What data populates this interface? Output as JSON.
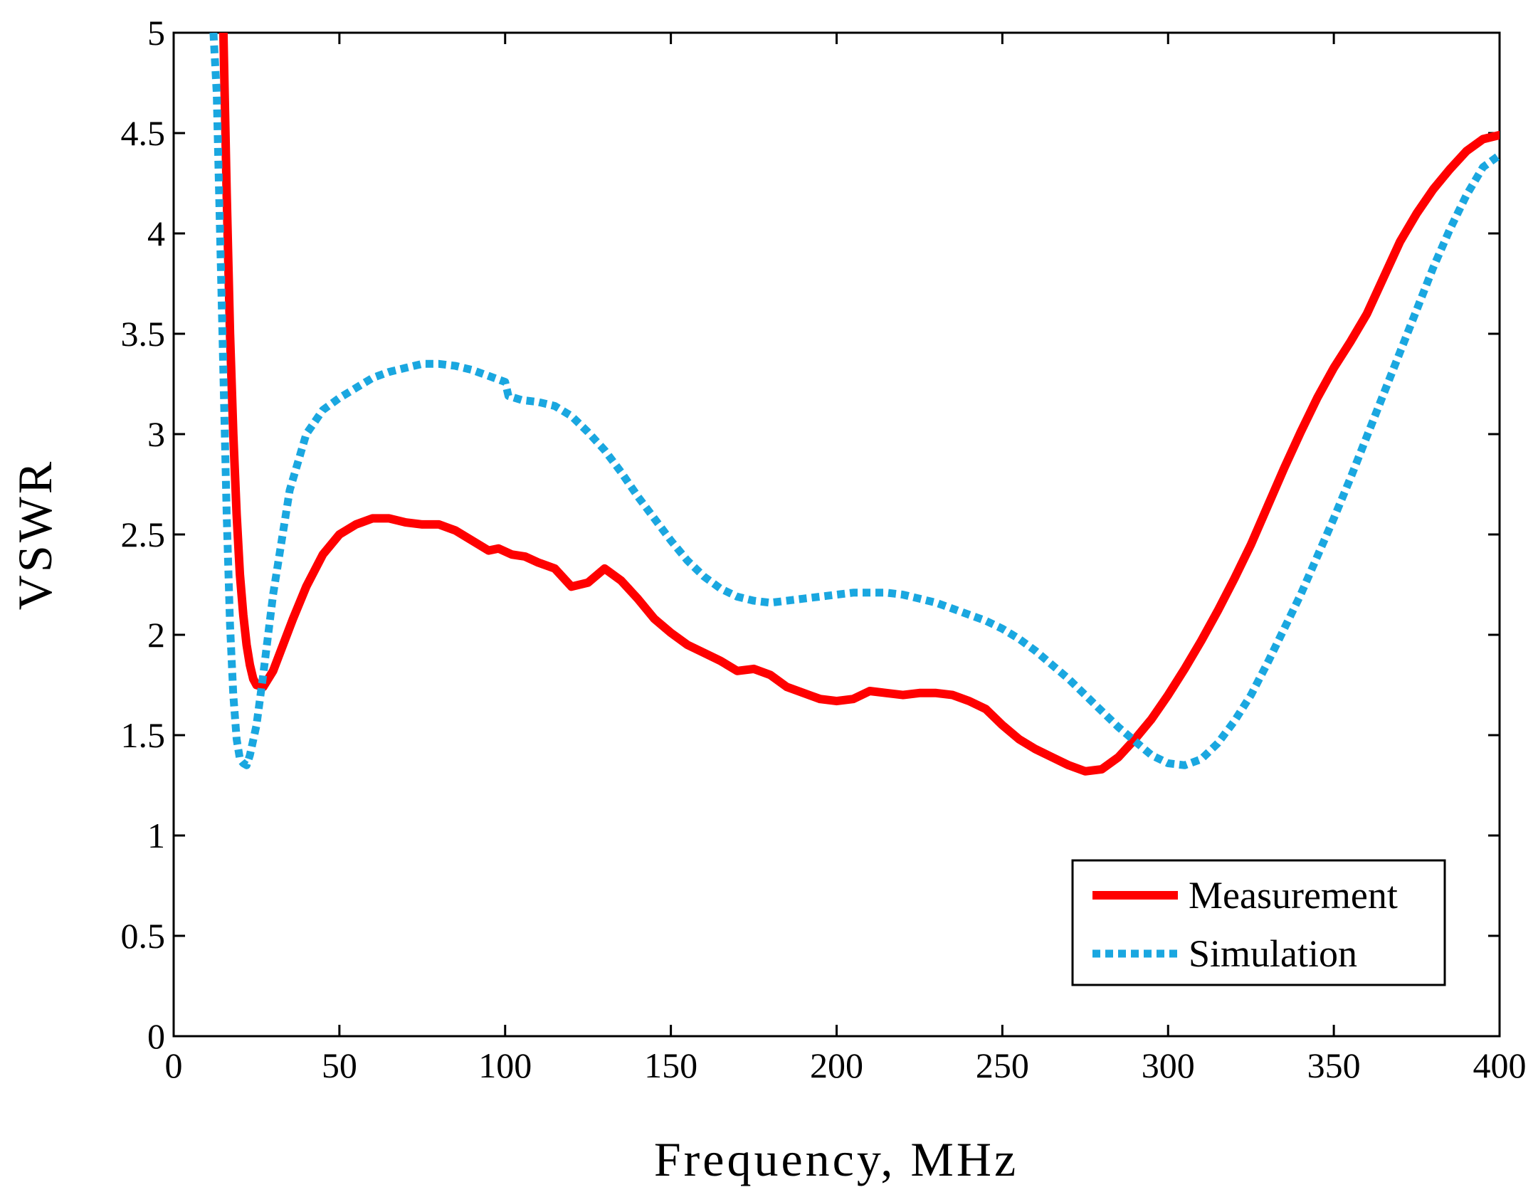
{
  "chart_data": {
    "type": "line",
    "title": "",
    "xlabel": "Frequency, MHz",
    "ylabel": "VSWR",
    "xlim": [
      0,
      400
    ],
    "ylim": [
      0,
      5
    ],
    "xticks": [
      0,
      50,
      100,
      150,
      200,
      250,
      300,
      350,
      400
    ],
    "yticks": [
      0,
      0.5,
      1,
      1.5,
      2,
      2.5,
      3,
      3.5,
      4,
      4.5,
      5
    ],
    "xtick_labels": [
      "0",
      "50",
      "100",
      "150",
      "200",
      "250",
      "300",
      "350",
      "400"
    ],
    "ytick_labels": [
      "0",
      "0.5",
      "1",
      "1.5",
      "2",
      "2.5",
      "3",
      "3.5",
      "4",
      "4.5",
      "5"
    ],
    "grid": false,
    "legend_position": "bottom-right",
    "series": [
      {
        "name": "Measurement",
        "color": "#ff0000",
        "style": "solid",
        "x": [
          15,
          16,
          17,
          18,
          19,
          20,
          21,
          22,
          23,
          24,
          25,
          27,
          30,
          33,
          36,
          40,
          45,
          50,
          55,
          60,
          65,
          70,
          75,
          80,
          85,
          90,
          95,
          98,
          102,
          106,
          110,
          115,
          120,
          125,
          130,
          135,
          140,
          145,
          150,
          155,
          160,
          165,
          170,
          175,
          180,
          185,
          190,
          195,
          200,
          205,
          210,
          215,
          220,
          225,
          230,
          235,
          240,
          245,
          250,
          255,
          260,
          265,
          270,
          275,
          280,
          285,
          290,
          295,
          300,
          305,
          310,
          315,
          320,
          325,
          330,
          335,
          340,
          345,
          350,
          355,
          360,
          365,
          370,
          375,
          380,
          385,
          390,
          395,
          400
        ],
        "values": [
          5.0,
          4.2,
          3.5,
          3.0,
          2.6,
          2.3,
          2.1,
          1.95,
          1.85,
          1.78,
          1.75,
          1.74,
          1.82,
          1.95,
          2.08,
          2.24,
          2.4,
          2.5,
          2.55,
          2.58,
          2.58,
          2.56,
          2.55,
          2.55,
          2.52,
          2.47,
          2.42,
          2.43,
          2.4,
          2.39,
          2.36,
          2.33,
          2.24,
          2.26,
          2.33,
          2.27,
          2.18,
          2.08,
          2.01,
          1.95,
          1.91,
          1.87,
          1.82,
          1.83,
          1.8,
          1.74,
          1.71,
          1.68,
          1.67,
          1.68,
          1.72,
          1.71,
          1.7,
          1.71,
          1.71,
          1.7,
          1.67,
          1.63,
          1.55,
          1.48,
          1.43,
          1.39,
          1.35,
          1.32,
          1.33,
          1.39,
          1.48,
          1.58,
          1.7,
          1.83,
          1.97,
          2.12,
          2.28,
          2.45,
          2.64,
          2.83,
          3.01,
          3.18,
          3.33,
          3.46,
          3.6,
          3.78,
          3.96,
          4.1,
          4.22,
          4.32,
          4.41,
          4.47,
          4.49
        ]
      },
      {
        "name": "Simulation",
        "color": "#1aa7e0",
        "style": "dotted",
        "x": [
          12,
          13,
          14,
          15,
          16,
          17,
          18,
          19,
          20,
          21,
          22,
          23,
          25,
          27,
          30,
          35,
          40,
          45,
          50,
          55,
          60,
          65,
          70,
          75,
          80,
          85,
          90,
          95,
          100,
          101,
          105,
          110,
          115,
          120,
          125,
          130,
          135,
          140,
          145,
          150,
          155,
          160,
          165,
          170,
          175,
          180,
          185,
          190,
          195,
          200,
          205,
          210,
          215,
          220,
          225,
          230,
          235,
          240,
          245,
          250,
          255,
          260,
          265,
          270,
          275,
          280,
          285,
          290,
          295,
          300,
          305,
          310,
          315,
          320,
          325,
          330,
          335,
          340,
          345,
          350,
          355,
          360,
          365,
          370,
          375,
          380,
          385,
          390,
          395,
          400
        ],
        "values": [
          5.0,
          4.7,
          4.0,
          3.3,
          2.6,
          2.05,
          1.7,
          1.48,
          1.38,
          1.36,
          1.35,
          1.4,
          1.55,
          1.8,
          2.2,
          2.72,
          3.0,
          3.12,
          3.18,
          3.23,
          3.28,
          3.31,
          3.33,
          3.35,
          3.35,
          3.34,
          3.32,
          3.29,
          3.26,
          3.19,
          3.17,
          3.16,
          3.14,
          3.09,
          3.01,
          2.92,
          2.81,
          2.69,
          2.58,
          2.47,
          2.37,
          2.29,
          2.23,
          2.19,
          2.17,
          2.16,
          2.17,
          2.18,
          2.19,
          2.2,
          2.21,
          2.21,
          2.21,
          2.2,
          2.18,
          2.16,
          2.13,
          2.1,
          2.07,
          2.03,
          1.98,
          1.92,
          1.85,
          1.78,
          1.7,
          1.62,
          1.54,
          1.47,
          1.4,
          1.36,
          1.35,
          1.38,
          1.46,
          1.57,
          1.7,
          1.86,
          2.03,
          2.2,
          2.39,
          2.58,
          2.78,
          2.99,
          3.2,
          3.41,
          3.62,
          3.83,
          4.02,
          4.19,
          4.33,
          4.39
        ]
      }
    ]
  }
}
